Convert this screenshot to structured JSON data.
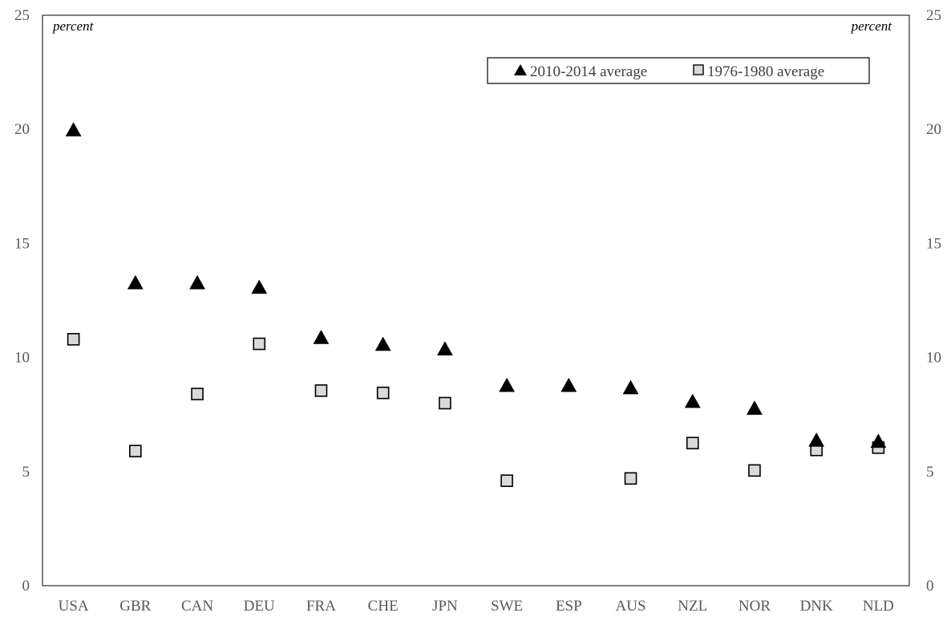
{
  "chart_data": {
    "type": "scatter",
    "categories": [
      "USA",
      "GBR",
      "CAN",
      "DEU",
      "FRA",
      "CHE",
      "JPN",
      "SWE",
      "ESP",
      "AUS",
      "NZL",
      "NOR",
      "DNK",
      "NLD"
    ],
    "series": [
      {
        "name": "2010-2014 average",
        "marker": "triangle",
        "color": "#000000",
        "values": [
          20.0,
          13.3,
          13.3,
          13.1,
          10.9,
          10.6,
          10.4,
          8.8,
          8.8,
          8.7,
          8.1,
          7.8,
          6.4,
          6.35
        ]
      },
      {
        "name": "1976-1980 average",
        "marker": "square",
        "color": "#d9d9d9",
        "values": [
          10.8,
          5.9,
          8.4,
          10.6,
          8.55,
          8.45,
          8.0,
          4.6,
          null,
          4.7,
          6.25,
          5.05,
          5.95,
          6.05
        ]
      }
    ],
    "ylim": [
      0,
      25
    ],
    "yticks": [
      "0",
      "5",
      "10",
      "15",
      "20",
      "25"
    ],
    "y_unit_left": "percent",
    "y_unit_right": "percent",
    "legend_position": "top-right",
    "grid": false
  }
}
